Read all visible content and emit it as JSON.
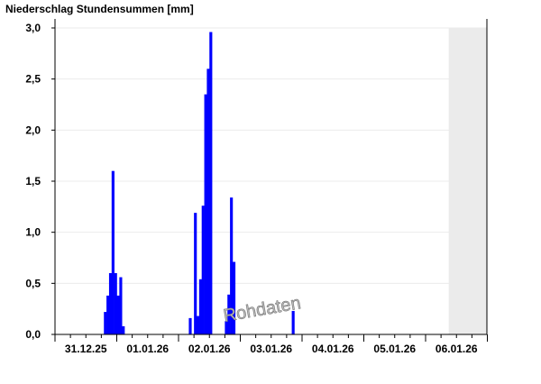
{
  "chart_data": {
    "type": "bar",
    "title": "Niederschlag Stundensummen [mm]",
    "xlabel": "",
    "ylabel": "",
    "ylim": [
      0,
      3.0
    ],
    "yticks": [
      "0,0",
      "0,5",
      "1,0",
      "1,5",
      "2,0",
      "2,5",
      "3,0"
    ],
    "ytick_values": [
      0,
      0.5,
      1.0,
      1.5,
      2.0,
      2.5,
      3.0
    ],
    "xtick_labels": [
      "31.12.25",
      "01.01.26",
      "02.01.26",
      "03.01.26",
      "04.01.26",
      "05.01.26",
      "06.01.26"
    ],
    "x_unit": "hour since 31.12.25 00:00",
    "grid": true,
    "bar_color": "#0000ff",
    "future_shading_color": "#ebebeb",
    "future_shading_start": "06.01.26 09:00",
    "watermark": "Rohdaten",
    "bars": [
      {
        "time": "31.12.25 19:00",
        "value": 0.22
      },
      {
        "time": "31.12.25 20:00",
        "value": 0.38
      },
      {
        "time": "31.12.25 21:00",
        "value": 0.6
      },
      {
        "time": "31.12.25 22:00",
        "value": 1.6
      },
      {
        "time": "31.12.25 23:00",
        "value": 0.6
      },
      {
        "time": "01.01.26 00:00",
        "value": 0.38
      },
      {
        "time": "01.01.26 01:00",
        "value": 0.56
      },
      {
        "time": "01.01.26 02:00",
        "value": 0.08
      },
      {
        "time": "02.01.26 04:00",
        "value": 0.16
      },
      {
        "time": "02.01.26 06:00",
        "value": 1.19
      },
      {
        "time": "02.01.26 07:00",
        "value": 0.18
      },
      {
        "time": "02.01.26 08:00",
        "value": 0.54
      },
      {
        "time": "02.01.26 09:00",
        "value": 1.26
      },
      {
        "time": "02.01.26 10:00",
        "value": 2.35
      },
      {
        "time": "02.01.26 11:00",
        "value": 2.6
      },
      {
        "time": "02.01.26 12:00",
        "value": 2.96
      },
      {
        "time": "02.01.26 18:00",
        "value": 0.13
      },
      {
        "time": "02.01.26 19:00",
        "value": 0.39
      },
      {
        "time": "02.01.26 20:00",
        "value": 1.34
      },
      {
        "time": "02.01.26 21:00",
        "value": 0.71
      },
      {
        "time": "03.01.26 20:00",
        "value": 0.23
      }
    ]
  }
}
